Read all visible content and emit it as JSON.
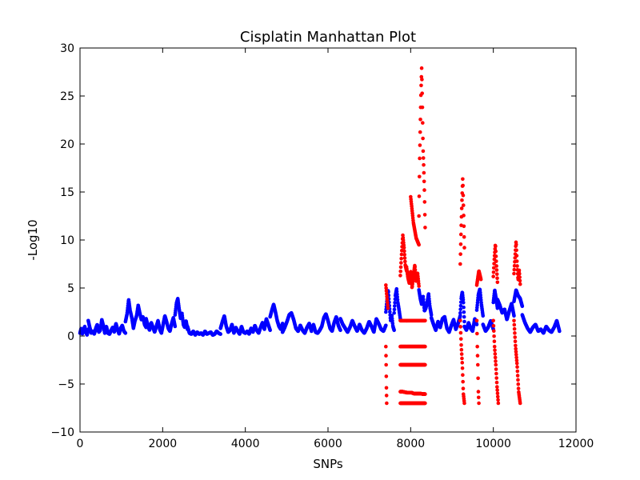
{
  "chart_data": {
    "type": "scatter",
    "title": "Cisplatin Manhattan Plot",
    "xlabel": "SNPs",
    "ylabel": "-Log10",
    "xlim": [
      0,
      12000
    ],
    "ylim": [
      -10,
      30
    ],
    "xticks": [
      0,
      2000,
      4000,
      6000,
      8000,
      10000,
      12000
    ],
    "yticks": [
      -10,
      -5,
      0,
      5,
      10,
      15,
      20,
      25,
      30
    ],
    "xtick_labels": [
      "0",
      "2000",
      "4000",
      "6000",
      "8000",
      "10000",
      "12000"
    ],
    "ytick_labels": [
      "−10",
      "−5",
      "0",
      "5",
      "10",
      "15",
      "20",
      "25",
      "30"
    ],
    "grid": false,
    "series": [
      {
        "color": "#0000ff",
        "segments": [
          {
            "from": 0,
            "to": 200,
            "values": [
              0.3,
              0.8,
              0.2,
              0.6,
              1.0,
              0.4,
              0.1,
              0.7
            ]
          },
          {
            "from": 200,
            "to": 600,
            "values": [
              1.6,
              0.9,
              0.3,
              0.5,
              0.2,
              0.8,
              1.2,
              0.4,
              0.6,
              1.7,
              1.1,
              0.3
            ]
          },
          {
            "from": 600,
            "to": 1100,
            "values": [
              0.5,
              1.0,
              0.3,
              0.2,
              0.6,
              0.9,
              0.4,
              1.3,
              0.7,
              0.2,
              0.8,
              1.1,
              0.5,
              0.3
            ]
          },
          {
            "from": 1100,
            "to": 1600,
            "values": [
              1.5,
              2.3,
              3.8,
              2.6,
              1.9,
              0.8,
              1.6,
              2.1,
              3.2,
              2.4,
              1.7,
              2.0,
              1.2,
              0.9
            ]
          },
          {
            "from": 1600,
            "to": 2300,
            "values": [
              1.8,
              1.1,
              0.6,
              1.4,
              0.9,
              0.4,
              1.0,
              1.6,
              0.7,
              0.3,
              1.2,
              2.1,
              1.5,
              0.8,
              0.5,
              1.3,
              1.9,
              1.0
            ]
          },
          {
            "from": 2300,
            "to": 2600,
            "values": [
              2.2,
              3.4,
              3.9,
              2.8,
              1.8,
              2.4,
              1.2,
              0.9,
              1.6,
              0.7
            ]
          },
          {
            "from": 2600,
            "to": 3400,
            "values": [
              1.0,
              0.3,
              0.2,
              0.5,
              0.1,
              0.4,
              0.2,
              0.3,
              0.1,
              0.5,
              0.2,
              0.3,
              0.4,
              0.1,
              0.2,
              0.5,
              0.3,
              0.2
            ]
          },
          {
            "from": 3400,
            "to": 4000,
            "values": [
              0.8,
              1.5,
              2.1,
              1.0,
              0.4,
              0.6,
              1.2,
              0.3,
              0.9,
              0.5,
              0.2,
              1.0,
              0.4,
              0.3
            ]
          },
          {
            "from": 4000,
            "to": 4600,
            "values": [
              0.3,
              0.5,
              0.2,
              0.8,
              0.4,
              1.1,
              0.6,
              0.3,
              0.9,
              1.4,
              0.7,
              1.8,
              1.2,
              0.6
            ]
          },
          {
            "from": 4600,
            "to": 4900,
            "values": [
              2.0,
              2.7,
              3.3,
              2.5,
              1.6,
              1.0,
              0.7,
              1.3
            ]
          },
          {
            "from": 4900,
            "to": 5600,
            "values": [
              0.4,
              0.9,
              1.5,
              2.2,
              2.4,
              1.7,
              0.8,
              0.5,
              1.1,
              0.6,
              0.3,
              0.9,
              1.3,
              0.5
            ]
          },
          {
            "from": 5600,
            "to": 6300,
            "values": [
              0.7,
              1.2,
              0.4,
              0.3,
              0.6,
              1.0,
              1.9,
              2.3,
              1.6,
              0.8,
              0.5,
              1.4,
              2.0,
              1.1,
              0.6
            ]
          },
          {
            "from": 6300,
            "to": 7400,
            "values": [
              1.8,
              1.2,
              0.8,
              0.4,
              0.9,
              1.6,
              1.0,
              0.5,
              1.2,
              0.6,
              0.3,
              0.8,
              1.5,
              1.0,
              0.4,
              1.8,
              1.3,
              0.7,
              0.5,
              1.1
            ]
          },
          {
            "from": 7400,
            "to": 7600,
            "values": [
              2.5,
              3.8,
              4.8,
              3.1,
              1.6,
              2.2,
              1.0,
              0.6
            ]
          },
          {
            "from": 7600,
            "to": 7750,
            "values": [
              2.4,
              4.2,
              4.9,
              3.5,
              2.7,
              1.8
            ]
          },
          {
            "from": 8200,
            "to": 8500,
            "values": [
              4.8,
              3.9,
              3.3,
              4.2,
              2.6,
              2.9,
              3.5,
              4.4,
              3.0,
              2.2
            ]
          },
          {
            "from": 8500,
            "to": 9200,
            "values": [
              1.9,
              1.2,
              0.6,
              1.5,
              0.9,
              1.8,
              2.0,
              0.8,
              0.4,
              1.1,
              1.7,
              0.7,
              1.3,
              2.1
            ]
          },
          {
            "from": 9200,
            "to": 9300,
            "values": [
              2.4,
              4.0,
              4.6,
              3.6,
              1.5
            ]
          },
          {
            "from": 9300,
            "to": 9600,
            "values": [
              1.0,
              0.6,
              1.4,
              0.8,
              0.5,
              1.8,
              1.2
            ]
          },
          {
            "from": 9600,
            "to": 9750,
            "values": [
              2.7,
              4.3,
              4.9,
              3.3,
              2.1
            ]
          },
          {
            "from": 9750,
            "to": 10000,
            "values": [
              1.2,
              0.5,
              0.9,
              1.6,
              0.7
            ]
          },
          {
            "from": 10000,
            "to": 10100,
            "values": [
              3.5,
              4.8,
              3.9,
              2.9
            ]
          },
          {
            "from": 10100,
            "to": 10500,
            "values": [
              3.8,
              3.2,
              2.4,
              2.8,
              1.7,
              2.6,
              3.4,
              2.1
            ]
          },
          {
            "from": 10500,
            "to": 10700,
            "values": [
              3.6,
              4.8,
              4.2,
              3.9,
              3.1
            ]
          },
          {
            "from": 10700,
            "to": 11600,
            "values": [
              2.2,
              1.4,
              0.8,
              0.4,
              0.9,
              1.2,
              0.5,
              0.7,
              0.3,
              1.0,
              0.6,
              0.4,
              0.9,
              1.6,
              0.5
            ]
          }
        ]
      },
      {
        "color": "#ff0000",
        "segments": [
          {
            "from": 7400,
            "to": 7450,
            "values": [
              5.3,
              4.1,
              2.9
            ]
          },
          {
            "from": 7750,
            "to": 7900,
            "values": [
              6.3,
              8.5,
              10.5,
              9.2,
              7.4,
              6.8
            ]
          },
          {
            "from": 7900,
            "to": 8200,
            "values": [
              7.2,
              6.1,
              5.5,
              6.8,
              5.0,
              6.3,
              7.4,
              5.7,
              6.6,
              5.2
            ]
          },
          {
            "from": 8200,
            "to": 8350,
            "values": [
              12.5,
              18.2,
              22.0,
              25.5,
              28.0,
              24.0,
              19.5,
              17.5,
              15.0,
              11.3
            ]
          },
          {
            "from": 8000,
            "to": 8200,
            "values": [
              14.5,
              11.8,
              10.2,
              9.5
            ]
          },
          {
            "from": 9200,
            "to": 9300,
            "values": [
              7.5,
              11.0,
              14.0,
              16.5,
              13.0,
              9.2
            ]
          },
          {
            "from": 9600,
            "to": 9700,
            "values": [
              5.3,
              6.8,
              5.9
            ]
          },
          {
            "from": 10000,
            "to": 10100,
            "values": [
              6.2,
              8.1,
              9.6,
              7.4,
              5.6
            ]
          },
          {
            "from": 10500,
            "to": 10650,
            "values": [
              6.5,
              8.2,
              9.9,
              7.5,
              5.8,
              6.9,
              5.4
            ]
          },
          {
            "from": 7750,
            "to": 8350,
            "values": [
              1.6,
              1.6,
              1.6,
              1.6,
              1.6,
              1.6,
              1.6,
              1.6,
              1.6,
              1.6,
              1.6,
              1.6
            ]
          },
          {
            "from": 7750,
            "to": 8350,
            "values": [
              -1.1,
              -1.1,
              -1.1,
              -1.1,
              -1.1,
              -1.1,
              -1.1,
              -1.1,
              -1.1,
              -1.1,
              -1.1,
              -1.1
            ]
          },
          {
            "from": 7750,
            "to": 8350,
            "values": [
              -3.0,
              -3.0,
              -3.0,
              -3.0,
              -3.0,
              -3.0,
              -3.0,
              -3.0,
              -3.0,
              -3.0,
              -3.0,
              -3.0
            ]
          },
          {
            "from": 7750,
            "to": 8350,
            "values": [
              -5.8,
              -5.8,
              -5.85,
              -5.9,
              -5.9,
              -5.9,
              -6.0,
              -6.0,
              -6.0,
              -6.0,
              -6.05,
              -6.05
            ]
          },
          {
            "from": 7750,
            "to": 8350,
            "values": [
              -7.0,
              -7.0,
              -7.0,
              -7.0,
              -7.0,
              -7.0,
              -7.0,
              -7.0,
              -7.0,
              -7.0,
              -7.0,
              -7.0
            ]
          },
          {
            "from": 7400,
            "to": 7420,
            "values": [
              -1.1,
              -3.0,
              -5.4,
              -7.0
            ]
          },
          {
            "from": 9200,
            "to": 9300,
            "values": [
              1.6,
              -1.1,
              -3.0,
              -6.0,
              -7.0
            ]
          },
          {
            "from": 9600,
            "to": 9650,
            "values": [
              1.6,
              -1.1,
              -3.0,
              -5.8,
              -7.0
            ]
          },
          {
            "from": 10000,
            "to": 10120,
            "values": [
              1.6,
              -1.1,
              -3.0,
              -5.3,
              -7.0
            ]
          },
          {
            "from": 10500,
            "to": 10650,
            "values": [
              1.6,
              -1.1,
              -3.0,
              -5.8,
              -7.0
            ]
          }
        ]
      }
    ]
  }
}
